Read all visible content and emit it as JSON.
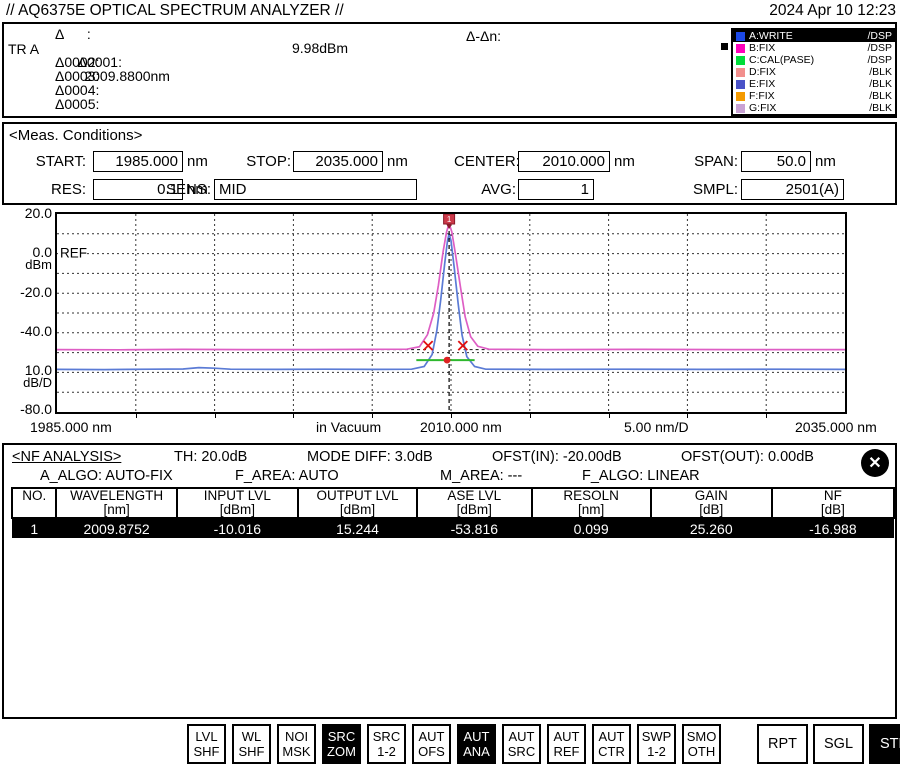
{
  "header": {
    "title": "// AQ6375E OPTICAL SPECTRUM ANALYZER //",
    "datetime": "2024 Apr 10 12:23"
  },
  "icons": {
    "close": "✕"
  },
  "marker": {
    "trace_label": "TR A",
    "delta_header": "Δ      :",
    "d1_label": "Δ0001:",
    "d1_wavelength": "2009.8800nm",
    "d1_level": "9.98dBm",
    "d2_label": "Δ0002:",
    "d3_label": "Δ0003:",
    "d4_label": "Δ0004:",
    "d5_label": "Δ0005:",
    "delta_n_label": "Δ-Δn:",
    "legend": [
      {
        "name": "A:WRITE",
        "mode": "/DSP",
        "color": "#1c49e8",
        "active": true
      },
      {
        "name": "B:FIX",
        "mode": "/DSP",
        "color": "#ff00bb",
        "active": false
      },
      {
        "name": "C:CAL(PASE)",
        "mode": "/DSP",
        "color": "#00dd3a",
        "active": false
      },
      {
        "name": "D:FIX",
        "mode": "/BLK",
        "color": "#f28f8d",
        "active": false
      },
      {
        "name": "E:FIX",
        "mode": "/BLK",
        "color": "#4a52c8",
        "active": false
      },
      {
        "name": "F:FIX",
        "mode": "/BLK",
        "color": "#f49a00",
        "active": false
      },
      {
        "name": "G:FIX",
        "mode": "/BLK",
        "color": "#c9a2d4",
        "active": false
      }
    ]
  },
  "meas": {
    "title": "<Meas. Conditions>",
    "fields": [
      {
        "label": "START:",
        "value": "1985.000",
        "unit": "nm"
      },
      {
        "label": "STOP:",
        "value": "2035.000",
        "unit": "nm"
      },
      {
        "label": "CENTER:",
        "value": "2010.000",
        "unit": "nm"
      },
      {
        "label": "SPAN:",
        "value": "50.0",
        "unit": "nm"
      },
      {
        "label": "RES:",
        "value": "0.1",
        "unit": "nm"
      },
      {
        "label": "SENS:",
        "value": "MID",
        "unit": ""
      },
      {
        "label": "AVG:",
        "value": "1",
        "unit": ""
      },
      {
        "label": "SMPL:",
        "value": "2501(A)",
        "unit": ""
      }
    ]
  },
  "chart_data": {
    "type": "line",
    "x_range_nm": [
      1985,
      2035
    ],
    "x_div_nm": 5,
    "y_range_dbm": [
      -80,
      20
    ],
    "y_div_db": 10,
    "ref_label": "REF",
    "y_axis_labels": [
      "20.0",
      "0.0",
      "dBm",
      "-20.0",
      "-40.0",
      "10.0",
      "dB/D",
      "-80.0"
    ],
    "x_axis_labels": [
      "1985.000 nm",
      "in Vacuum",
      "2010.000 nm",
      "5.00 nm/D",
      "2035.000 nm"
    ],
    "series": [
      {
        "name": "A:WRITE",
        "color": "#5b7bd5",
        "points": [
          [
            1985,
            -58.5
          ],
          [
            1988,
            -58.6
          ],
          [
            1991,
            -58.4
          ],
          [
            1993,
            -58.3
          ],
          [
            1994,
            -57.6
          ],
          [
            1995,
            -57.9
          ],
          [
            1996,
            -58.4
          ],
          [
            1999,
            -58.5
          ],
          [
            2002,
            -58.4
          ],
          [
            2005,
            -58.5
          ],
          [
            2007.5,
            -58.4
          ],
          [
            2008.3,
            -57
          ],
          [
            2008.8,
            -51
          ],
          [
            2009.1,
            -39
          ],
          [
            2009.35,
            -23
          ],
          [
            2009.6,
            -5
          ],
          [
            2009.78,
            6.5
          ],
          [
            2009.88,
            9.98
          ],
          [
            2010,
            6.5
          ],
          [
            2010.2,
            -7
          ],
          [
            2010.45,
            -25
          ],
          [
            2010.7,
            -41
          ],
          [
            2011,
            -52
          ],
          [
            2011.5,
            -57
          ],
          [
            2012.2,
            -58.4
          ],
          [
            2016,
            -58.5
          ],
          [
            2021,
            -58.4
          ],
          [
            2026,
            -58.5
          ],
          [
            2031,
            -58.4
          ],
          [
            2035,
            -58.5
          ]
        ]
      },
      {
        "name": "B:FIX",
        "color": "#de5ec4",
        "points": [
          [
            1985,
            -48.5
          ],
          [
            1989,
            -48.6
          ],
          [
            1993,
            -48.4
          ],
          [
            1997,
            -48.5
          ],
          [
            2001,
            -48.5
          ],
          [
            2004.5,
            -48.4
          ],
          [
            2007.2,
            -48.3
          ],
          [
            2008,
            -47
          ],
          [
            2008.5,
            -41
          ],
          [
            2008.9,
            -30
          ],
          [
            2009.2,
            -16
          ],
          [
            2009.5,
            1
          ],
          [
            2009.72,
            11
          ],
          [
            2009.88,
            15.24
          ],
          [
            2010.05,
            11
          ],
          [
            2010.3,
            -1
          ],
          [
            2010.6,
            -17
          ],
          [
            2010.9,
            -32
          ],
          [
            2011.25,
            -42
          ],
          [
            2011.7,
            -46.8
          ],
          [
            2012.4,
            -48.3
          ],
          [
            2016,
            -48.5
          ],
          [
            2022,
            -48.4
          ],
          [
            2028,
            -48.5
          ],
          [
            2035,
            -48.5
          ]
        ]
      }
    ],
    "annotations": {
      "peak_marker": {
        "x_nm": 2009.88,
        "y_dbm": 9.98,
        "label": "1",
        "color": "#cc3a4a"
      },
      "marker_line_x_nm": 2009.88,
      "x_marks": {
        "color": "#e01010",
        "points": [
          {
            "x_nm": 2008.55,
            "y_dbm": -46.5
          },
          {
            "x_nm": 2010.75,
            "y_dbm": -46.5
          }
        ]
      },
      "ase_line": {
        "x1_nm": 2007.8,
        "x2_nm": 2011.5,
        "y_dbm": -53.8,
        "color": "#2eb82e",
        "dot_x_nm": 2009.75,
        "dot_color": "#dd2222"
      },
      "fit_segments": [
        {
          "x1_nm": 2004.8,
          "x2_nm": 2008.5,
          "y_dbm": -48.5
        },
        {
          "x1_nm": 2010.8,
          "x2_nm": 2013.8,
          "y_dbm": -48.5
        }
      ]
    }
  },
  "nf": {
    "title": "<NF ANALYSIS>",
    "th": "TH: 20.0dB",
    "mode_diff": "MODE DIFF: 3.0dB",
    "ofst_in": "OFST(IN): -20.00dB",
    "ofst_out": "OFST(OUT): 0.00dB",
    "a_algo": "A_ALGO: AUTO-FIX",
    "f_area": "F_AREA: AUTO",
    "m_area": "M_AREA: ---",
    "f_algo": "F_ALGO: LINEAR",
    "columns": [
      {
        "name": "NO.",
        "unit": ""
      },
      {
        "name": "WAVELENGTH",
        "unit": "[nm]"
      },
      {
        "name": "INPUT LVL",
        "unit": "[dBm]"
      },
      {
        "name": "OUTPUT LVL",
        "unit": "[dBm]"
      },
      {
        "name": "ASE LVL",
        "unit": "[dBm]"
      },
      {
        "name": "RESOLN",
        "unit": "[nm]"
      },
      {
        "name": "GAIN",
        "unit": "[dB]"
      },
      {
        "name": "NF",
        "unit": "[dB]"
      }
    ],
    "rows": [
      [
        "1",
        "2009.8752",
        "-10.016",
        "15.244",
        "-53.816",
        "0.099",
        "25.260",
        "-16.988"
      ]
    ]
  },
  "softkeys": [
    {
      "line1": "LVL",
      "line2": "SHF",
      "active": false
    },
    {
      "line1": "WL",
      "line2": "SHF",
      "active": false
    },
    {
      "line1": "NOI",
      "line2": "MSK",
      "active": false
    },
    {
      "line1": "SRC",
      "line2": "ZOM",
      "active": true
    },
    {
      "line1": "SRC",
      "line2": "1-2",
      "active": false
    },
    {
      "line1": "AUT",
      "line2": "OFS",
      "active": false
    },
    {
      "line1": "AUT",
      "line2": "ANA",
      "active": true
    },
    {
      "line1": "AUT",
      "line2": "SRC",
      "active": false
    },
    {
      "line1": "AUT",
      "line2": "REF",
      "active": false
    },
    {
      "line1": "AUT",
      "line2": "CTR",
      "active": false
    },
    {
      "line1": "SWP",
      "line2": "1-2",
      "active": false
    },
    {
      "line1": "SMO",
      "line2": "OTH",
      "active": false
    }
  ],
  "sweep_keys": [
    {
      "label": "RPT",
      "active": false
    },
    {
      "label": "SGL",
      "active": false
    },
    {
      "label": "STP",
      "active": true
    }
  ]
}
